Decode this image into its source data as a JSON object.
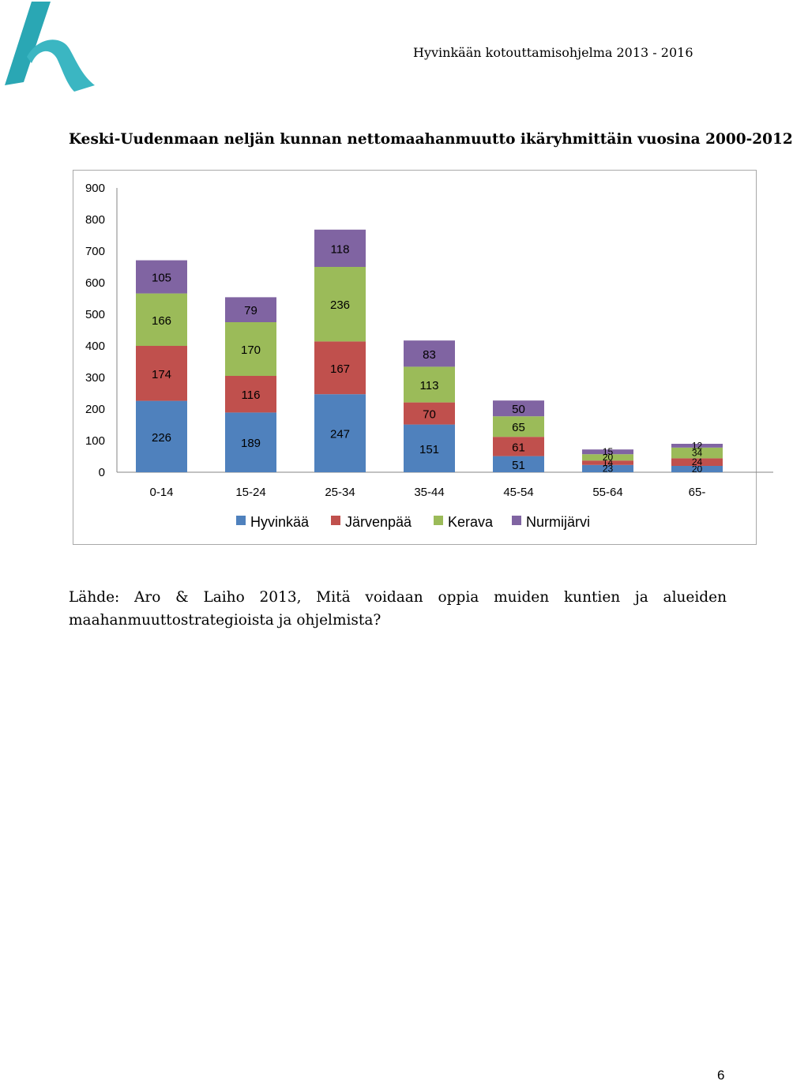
{
  "header": {
    "document_title": "Hyvinkään kotouttamisohjelma 2013 - 2016"
  },
  "logo": {
    "icon": "h-letter-logo",
    "color": "#2aa7b4"
  },
  "chart_data": {
    "type": "bar",
    "stacked": true,
    "title": "Keski-Uudenmaan neljän kunnan nettomaahanmuutto ikäryhmittäin vuosina 2000-2012",
    "categories": [
      "0-14",
      "15-24",
      "25-34",
      "35-44",
      "45-54",
      "55-64",
      "65-"
    ],
    "series": [
      {
        "name": "Hyvinkää",
        "color": "#4f81bd",
        "values": [
          226,
          189,
          247,
          151,
          51,
          23,
          20
        ]
      },
      {
        "name": "Järvenpää",
        "color": "#c0504d",
        "values": [
          174,
          116,
          167,
          70,
          61,
          14,
          24
        ]
      },
      {
        "name": "Kerava",
        "color": "#9bbb59",
        "values": [
          166,
          170,
          236,
          113,
          65,
          20,
          34
        ]
      },
      {
        "name": "Nurmijärvi",
        "color": "#8064a2",
        "values": [
          105,
          79,
          118,
          83,
          50,
          15,
          12
        ]
      }
    ],
    "yticks": [
      "0",
      "100",
      "200",
      "300",
      "400",
      "500",
      "600",
      "700",
      "800",
      "900"
    ],
    "ylim": [
      0,
      900
    ],
    "grid": false,
    "legend_position": "bottom"
  },
  "source": {
    "text": "Lähde: Aro & Laiho 2013, Mitä voidaan oppia muiden kuntien ja alueiden maahanmuuttostrategioista ja ohjelmista?"
  },
  "page_number": "6"
}
